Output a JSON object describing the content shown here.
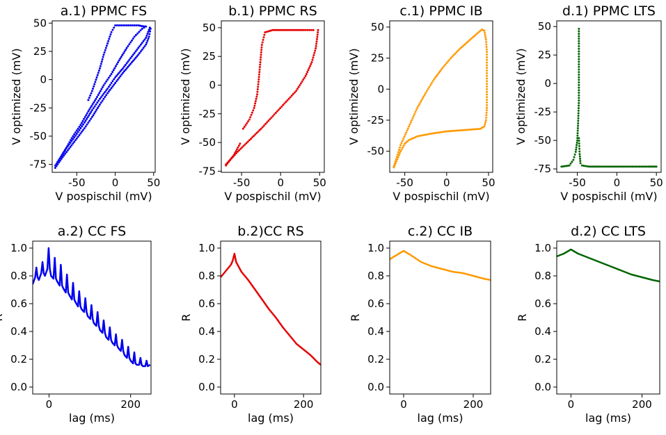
{
  "chart_data": [
    {
      "id": "a1",
      "type": "scatter",
      "title": "a.1) PPMC FS",
      "xlabel": "V pospischil (mV)",
      "ylabel": "V optimized (mV)",
      "xlim": [
        -82,
        52
      ],
      "ylim": [
        -82,
        52
      ],
      "xticks": [
        "-50",
        "0",
        "50"
      ],
      "xtick_values": [
        -50,
        0,
        50
      ],
      "yticks": [
        "-75",
        "-50",
        "-25",
        "0",
        "25",
        "50"
      ],
      "ytick_values": [
        -75,
        -50,
        -25,
        0,
        25,
        50
      ],
      "color": "#0000ee",
      "series": [
        {
          "name": "FS",
          "paths": [
            [
              [
                -78,
                -78
              ],
              [
                -70,
                -70
              ],
              [
                -60,
                -61
              ],
              [
                -50,
                -52
              ],
              [
                -40,
                -43
              ],
              [
                -30,
                -33
              ],
              [
                -20,
                -22
              ],
              [
                -10,
                -12
              ],
              [
                0,
                -3
              ],
              [
                10,
                6
              ],
              [
                20,
                14
              ],
              [
                30,
                22
              ],
              [
                40,
                31
              ],
              [
                44,
                38
              ],
              [
                46,
                45
              ]
            ],
            [
              [
                -78,
                -76
              ],
              [
                -65,
                -62
              ],
              [
                -50,
                -48
              ],
              [
                -40,
                -38
              ],
              [
                -30,
                -27
              ],
              [
                -20,
                -17
              ],
              [
                -10,
                -8
              ],
              [
                0,
                2
              ],
              [
                10,
                10
              ],
              [
                20,
                19
              ],
              [
                30,
                28
              ],
              [
                40,
                37
              ],
              [
                45,
                46
              ]
            ],
            [
              [
                -70,
                -68
              ],
              [
                -55,
                -50
              ],
              [
                -45,
                -40
              ],
              [
                -35,
                -28
              ],
              [
                -25,
                -17
              ],
              [
                -15,
                -5
              ],
              [
                -5,
                5
              ],
              [
                5,
                17
              ],
              [
                15,
                28
              ],
              [
                25,
                38
              ],
              [
                35,
                45
              ],
              [
                40,
                47
              ]
            ],
            [
              [
                -35,
                -18
              ],
              [
                -30,
                -10
              ],
              [
                -25,
                0
              ],
              [
                -20,
                10
              ],
              [
                -15,
                22
              ],
              [
                -10,
                32
              ],
              [
                -5,
                42
              ],
              [
                0,
                48
              ],
              [
                10,
                48
              ],
              [
                20,
                48
              ],
              [
                30,
                48
              ],
              [
                38,
                47
              ]
            ]
          ]
        }
      ]
    },
    {
      "id": "b1",
      "type": "scatter",
      "title": "b.1) PPMC RS",
      "xlabel": "V pospischil (mV)",
      "ylabel": "V optimized (mV)",
      "xlim": [
        -76,
        56
      ],
      "ylim": [
        -76,
        56
      ],
      "xticks": [
        "-50",
        "0",
        "50"
      ],
      "xtick_values": [
        -50,
        0,
        50
      ],
      "yticks": [
        "-75",
        "-50",
        "-25",
        "0",
        "25",
        "50"
      ],
      "ytick_values": [
        -75,
        -50,
        -25,
        0,
        25,
        50
      ],
      "color": "#e60000",
      "series": [
        {
          "name": "RS",
          "paths": [
            [
              [
                -70,
                -70
              ],
              [
                -60,
                -61
              ],
              [
                -52,
                -51
              ]
            ],
            [
              [
                -70,
                -69
              ],
              [
                -55,
                -58
              ],
              [
                -40,
                -48
              ],
              [
                -25,
                -38
              ],
              [
                -10,
                -27
              ],
              [
                5,
                -16
              ],
              [
                20,
                -5
              ],
              [
                32,
                8
              ],
              [
                40,
                20
              ],
              [
                45,
                32
              ],
              [
                47,
                42
              ],
              [
                48,
                48
              ]
            ],
            [
              [
                -48,
                -38
              ],
              [
                -40,
                -30
              ],
              [
                -34,
                -20
              ],
              [
                -30,
                -8
              ],
              [
                -28,
                5
              ],
              [
                -26,
                20
              ],
              [
                -24,
                35
              ],
              [
                -20,
                46
              ],
              [
                -10,
                48
              ],
              [
                0,
                48
              ],
              [
                15,
                48
              ],
              [
                30,
                48
              ],
              [
                42,
                48
              ]
            ]
          ]
        }
      ]
    },
    {
      "id": "c1",
      "type": "scatter",
      "title": "c.1) PPMC IB",
      "xlabel": "V pospischil (mV)",
      "ylabel": "V optimized (mV)",
      "xlim": [
        -68,
        55
      ],
      "ylim": [
        -67,
        55
      ],
      "xticks": [
        "-50",
        "0",
        "50"
      ],
      "xtick_values": [
        -50,
        0,
        50
      ],
      "yticks": [
        "-50",
        "-25",
        "0",
        "25",
        "50"
      ],
      "ytick_values": [
        -50,
        -25,
        0,
        25,
        50
      ],
      "color": "#ff9900",
      "series": [
        {
          "name": "IB",
          "paths": [
            [
              [
                -63,
                -63
              ],
              [
                -60,
                -58
              ],
              [
                -55,
                -50
              ],
              [
                -50,
                -44
              ],
              [
                -45,
                -41
              ],
              [
                -35,
                -38
              ],
              [
                -20,
                -36
              ],
              [
                0,
                -34
              ],
              [
                20,
                -33
              ],
              [
                40,
                -32
              ],
              [
                45,
                -30
              ],
              [
                47,
                -25
              ],
              [
                48,
                -15
              ]
            ],
            [
              [
                -63,
                -62
              ],
              [
                -55,
                -45
              ],
              [
                -45,
                -30
              ],
              [
                -35,
                -15
              ],
              [
                -25,
                -3
              ],
              [
                -15,
                8
              ],
              [
                -5,
                17
              ],
              [
                5,
                25
              ],
              [
                15,
                32
              ],
              [
                25,
                38
              ],
              [
                35,
                44
              ],
              [
                42,
                48
              ],
              [
                45,
                47
              ],
              [
                47,
                40
              ],
              [
                48,
                30
              ],
              [
                48,
                15
              ],
              [
                48,
                0
              ],
              [
                48,
                -15
              ]
            ]
          ]
        }
      ]
    },
    {
      "id": "d1",
      "type": "scatter",
      "title": "d.1) PPMC LTS",
      "xlabel": "V pospischil (mV)",
      "ylabel": "V optimized (mV)",
      "xlim": [
        -76,
        56
      ],
      "ylim": [
        -78,
        55
      ],
      "xticks": [
        "-50",
        "0",
        "50"
      ],
      "xtick_values": [
        -50,
        0,
        50
      ],
      "yticks": [
        "-75",
        "-50",
        "-25",
        "0",
        "25",
        "50"
      ],
      "ytick_values": [
        -75,
        -50,
        -25,
        0,
        25,
        50
      ],
      "color": "#006400",
      "series": [
        {
          "name": "LTS",
          "paths": [
            [
              [
                -70,
                -73
              ],
              [
                -60,
                -72
              ],
              [
                -55,
                -67
              ],
              [
                -52,
                -60
              ],
              [
                -50,
                -50
              ],
              [
                -49,
                -35
              ],
              [
                -48,
                -15
              ],
              [
                -48,
                10
              ],
              [
                -48,
                35
              ],
              [
                -48,
                48
              ]
            ],
            [
              [
                -48,
                -48
              ],
              [
                -47,
                -62
              ],
              [
                -46,
                -70
              ],
              [
                -44,
                -72
              ],
              [
                -35,
                -73
              ],
              [
                -20,
                -73
              ],
              [
                0,
                -73
              ],
              [
                20,
                -73
              ],
              [
                40,
                -73
              ],
              [
                50,
                -73
              ]
            ]
          ]
        }
      ]
    },
    {
      "id": "a2",
      "type": "line",
      "title": "a.2) CC FS",
      "xlabel": "lag (ms)",
      "ylabel": "R",
      "xlim": [
        -40,
        250
      ],
      "ylim": [
        -0.05,
        1.05
      ],
      "xticks": [
        "0",
        "200"
      ],
      "xtick_values": [
        0,
        200
      ],
      "yticks": [
        "0.0",
        "0.2",
        "0.4",
        "0.6",
        "0.8",
        "1.0"
      ],
      "ytick_values": [
        0,
        0.2,
        0.4,
        0.6,
        0.8,
        1.0
      ],
      "color": "#0000ee",
      "series": [
        {
          "name": "CC FS",
          "x": [
            -40,
            -34,
            -31,
            -28,
            -25,
            -19,
            -16,
            -13,
            -10,
            -4,
            -1,
            2,
            5,
            11,
            14,
            17,
            20,
            26,
            29,
            32,
            35,
            41,
            44,
            47,
            50,
            56,
            59,
            62,
            65,
            71,
            74,
            77,
            80,
            86,
            89,
            92,
            95,
            101,
            104,
            107,
            110,
            116,
            119,
            122,
            125,
            131,
            134,
            137,
            140,
            146,
            149,
            152,
            155,
            161,
            164,
            167,
            170,
            176,
            179,
            182,
            185,
            191,
            194,
            197,
            200,
            206,
            209,
            212,
            215,
            221,
            224,
            227,
            230,
            236,
            239,
            242,
            248
          ],
          "y": [
            0.74,
            0.79,
            0.86,
            0.79,
            0.77,
            0.82,
            0.9,
            0.82,
            0.8,
            0.85,
            1.0,
            0.85,
            0.8,
            0.78,
            0.93,
            0.78,
            0.76,
            0.73,
            0.88,
            0.73,
            0.71,
            0.68,
            0.81,
            0.68,
            0.66,
            0.63,
            0.75,
            0.63,
            0.61,
            0.58,
            0.69,
            0.58,
            0.56,
            0.54,
            0.64,
            0.54,
            0.51,
            0.49,
            0.59,
            0.49,
            0.46,
            0.44,
            0.54,
            0.44,
            0.41,
            0.39,
            0.48,
            0.39,
            0.36,
            0.34,
            0.43,
            0.34,
            0.32,
            0.3,
            0.38,
            0.3,
            0.28,
            0.26,
            0.34,
            0.26,
            0.23,
            0.21,
            0.29,
            0.21,
            0.19,
            0.17,
            0.25,
            0.17,
            0.16,
            0.16,
            0.21,
            0.16,
            0.15,
            0.15,
            0.19,
            0.15,
            0.16
          ]
        }
      ]
    },
    {
      "id": "b2",
      "type": "line",
      "title": "b.2)CC RS",
      "xlabel": "lag (ms)",
      "ylabel": "R",
      "xlim": [
        -40,
        250
      ],
      "ylim": [
        -0.05,
        1.05
      ],
      "xticks": [
        "0",
        "200"
      ],
      "xtick_values": [
        0,
        200
      ],
      "yticks": [
        "0.0",
        "0.2",
        "0.4",
        "0.6",
        "0.8",
        "1.0"
      ],
      "ytick_values": [
        0,
        0.2,
        0.4,
        0.6,
        0.8,
        1.0
      ],
      "color": "#e60000",
      "series": [
        {
          "name": "CC RS",
          "x": [
            -40,
            -30,
            -20,
            -10,
            -5,
            0,
            5,
            20,
            40,
            60,
            80,
            100,
            120,
            140,
            160,
            180,
            200,
            220,
            240,
            250
          ],
          "y": [
            0.79,
            0.82,
            0.85,
            0.88,
            0.91,
            0.96,
            0.9,
            0.83,
            0.77,
            0.7,
            0.63,
            0.56,
            0.5,
            0.43,
            0.37,
            0.31,
            0.27,
            0.23,
            0.18,
            0.16
          ]
        }
      ]
    },
    {
      "id": "c2",
      "type": "line",
      "title": "c.2) CC IB",
      "xlabel": "lag (ms)",
      "ylabel": "R",
      "xlim": [
        -40,
        250
      ],
      "ylim": [
        -0.05,
        1.05
      ],
      "xticks": [
        "0",
        "200"
      ],
      "xtick_values": [
        0,
        200
      ],
      "yticks": [
        "0.0",
        "0.2",
        "0.4",
        "0.6",
        "0.8",
        "1.0"
      ],
      "ytick_values": [
        0,
        0.2,
        0.4,
        0.6,
        0.8,
        1.0
      ],
      "color": "#ff9900",
      "series": [
        {
          "name": "CC IB",
          "x": [
            -40,
            -20,
            0,
            20,
            50,
            80,
            110,
            140,
            170,
            200,
            230,
            250
          ],
          "y": [
            0.92,
            0.95,
            0.98,
            0.95,
            0.9,
            0.87,
            0.85,
            0.83,
            0.82,
            0.8,
            0.78,
            0.77
          ]
        }
      ]
    },
    {
      "id": "d2",
      "type": "line",
      "title": "d.2) CC LTS",
      "xlabel": "lag (ms)",
      "ylabel": "R",
      "xlim": [
        -40,
        250
      ],
      "ylim": [
        -0.05,
        1.05
      ],
      "xticks": [
        "0",
        "200"
      ],
      "xtick_values": [
        0,
        200
      ],
      "yticks": [
        "0.0",
        "0.2",
        "0.4",
        "0.6",
        "0.8",
        "1.0"
      ],
      "ytick_values": [
        0,
        0.2,
        0.4,
        0.6,
        0.8,
        1.0
      ],
      "color": "#006400",
      "series": [
        {
          "name": "CC LTS",
          "x": [
            -40,
            -20,
            0,
            20,
            50,
            80,
            110,
            140,
            170,
            200,
            230,
            250
          ],
          "y": [
            0.94,
            0.96,
            0.99,
            0.96,
            0.93,
            0.9,
            0.87,
            0.84,
            0.81,
            0.79,
            0.77,
            0.76
          ]
        }
      ]
    }
  ]
}
